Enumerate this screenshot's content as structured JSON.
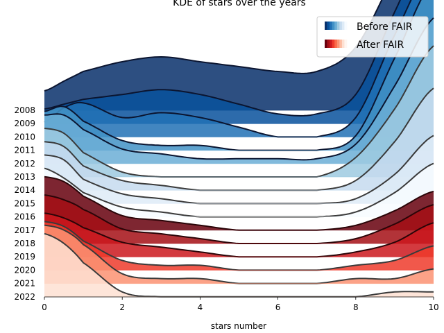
{
  "chart_data": {
    "type": "area",
    "subtype": "ridgeline-kde",
    "title": "KDE of stars over the years",
    "xlabel": "stars number",
    "ylabel": "",
    "xlim": [
      0,
      10
    ],
    "xticks": [
      "0",
      "2",
      "4",
      "6",
      "8",
      "10"
    ],
    "legend": {
      "placement": "top-right",
      "entries": [
        {
          "label": "Before FAIR",
          "colors": [
            "#08306b",
            "#08519c",
            "#2171b5",
            "#4292c6",
            "#6baed6",
            "#9ecae1",
            "#c6dbef",
            "#deebf7",
            "#f7fbff"
          ]
        },
        {
          "label": "After FAIR",
          "colors": [
            "#67000d",
            "#a50f15",
            "#cb181d",
            "#ef3b2c",
            "#fb6a4a",
            "#fc9272",
            "#fcbba1",
            "#fee0d2",
            "#fff5f0"
          ]
        }
      ]
    },
    "series": [
      {
        "name": "2008",
        "group": "before",
        "fill": "#08306b",
        "x": [
          0,
          0.5,
          1,
          2,
          3,
          4,
          5,
          6,
          7,
          8,
          9,
          10
        ],
        "density": [
          0.04,
          0.06,
          0.08,
          0.1,
          0.11,
          0.1,
          0.09,
          0.08,
          0.08,
          0.13,
          0.28,
          0.42
        ]
      },
      {
        "name": "2009",
        "group": "before",
        "fill": "#08519c",
        "x": [
          0,
          0.5,
          1,
          2,
          3,
          4,
          5,
          6,
          7,
          8,
          9,
          10
        ],
        "density": [
          0.03,
          0.04,
          0.05,
          0.06,
          0.07,
          0.06,
          0.04,
          0.02,
          0.02,
          0.06,
          0.23,
          0.39
        ]
      },
      {
        "name": "2010",
        "group": "before",
        "fill": "#2171b5",
        "x": [
          0,
          0.5,
          1,
          2,
          3,
          4,
          5,
          6,
          7,
          8,
          9,
          10
        ],
        "density": [
          0.03,
          0.06,
          0.07,
          0.04,
          0.05,
          0.04,
          0.02,
          0.0,
          0.0,
          0.04,
          0.21,
          0.36
        ]
      },
      {
        "name": "2011",
        "group": "before",
        "fill": "#4292c6",
        "x": [
          0,
          0.5,
          1,
          2,
          3,
          4,
          5,
          6,
          7,
          8,
          9,
          10
        ],
        "density": [
          0.08,
          0.09,
          0.06,
          0.02,
          0.01,
          0.01,
          0.0,
          0.0,
          0.0,
          0.03,
          0.19,
          0.35
        ]
      },
      {
        "name": "2012",
        "group": "before",
        "fill": "#6baed6",
        "x": [
          0,
          0.5,
          1,
          2,
          3,
          4,
          5,
          6,
          7,
          8,
          9,
          10
        ],
        "density": [
          0.1,
          0.1,
          0.07,
          0.03,
          0.02,
          0.01,
          0.01,
          0.01,
          0.01,
          0.04,
          0.16,
          0.3
        ]
      },
      {
        "name": "2013",
        "group": "before",
        "fill": "#9ecae1",
        "x": [
          0,
          0.5,
          1,
          2,
          3,
          4,
          5,
          6,
          7,
          8,
          9,
          10
        ],
        "density": [
          0.1,
          0.09,
          0.05,
          0.01,
          0.0,
          0.0,
          0.0,
          0.0,
          0.0,
          0.04,
          0.14,
          0.27
        ]
      },
      {
        "name": "2014",
        "group": "before",
        "fill": "#c6dbef",
        "x": [
          0,
          0.5,
          1,
          2,
          3,
          4,
          5,
          6,
          7,
          8,
          9,
          10
        ],
        "density": [
          0.1,
          0.09,
          0.05,
          0.02,
          0.01,
          0.0,
          0.0,
          0.0,
          0.0,
          0.02,
          0.1,
          0.21
        ]
      },
      {
        "name": "2015",
        "group": "before",
        "fill": "#deebf7",
        "x": [
          0,
          0.5,
          1,
          2,
          3,
          4,
          5,
          6,
          7,
          8,
          9,
          10
        ],
        "density": [
          0.1,
          0.09,
          0.05,
          0.02,
          0.01,
          0.0,
          0.0,
          0.0,
          0.0,
          0.01,
          0.06,
          0.14
        ]
      },
      {
        "name": "2016",
        "group": "before",
        "fill": "#f7fbff",
        "x": [
          0,
          0.5,
          1,
          2,
          3,
          4,
          5,
          6,
          7,
          8,
          9,
          10
        ],
        "density": [
          0.1,
          0.08,
          0.05,
          0.02,
          0.01,
          0.0,
          0.0,
          0.0,
          0.0,
          0.01,
          0.05,
          0.11
        ]
      },
      {
        "name": "2017",
        "group": "after",
        "fill": "#67000d",
        "x": [
          0,
          0.5,
          1,
          2,
          3,
          4,
          5,
          6,
          7,
          8,
          9,
          10
        ],
        "density": [
          0.11,
          0.1,
          0.07,
          0.03,
          0.02,
          0.01,
          0.0,
          0.0,
          0.0,
          0.01,
          0.04,
          0.08
        ]
      },
      {
        "name": "2018",
        "group": "after",
        "fill": "#a50f15",
        "x": [
          0,
          0.5,
          1,
          2,
          3,
          4,
          5,
          6,
          7,
          8,
          9,
          10
        ],
        "density": [
          0.1,
          0.09,
          0.07,
          0.03,
          0.02,
          0.01,
          0.0,
          0.0,
          0.0,
          0.01,
          0.04,
          0.08
        ]
      },
      {
        "name": "2019",
        "group": "after",
        "fill": "#cb181d",
        "x": [
          0,
          0.5,
          1,
          2,
          3,
          4,
          5,
          6,
          7,
          8,
          9,
          10
        ],
        "density": [
          0.09,
          0.08,
          0.06,
          0.03,
          0.02,
          0.01,
          0.0,
          0.0,
          0.0,
          0.01,
          0.03,
          0.07
        ]
      },
      {
        "name": "2020",
        "group": "after",
        "fill": "#ef3b2c",
        "x": [
          0,
          0.5,
          1,
          2,
          3,
          4,
          5,
          6,
          7,
          8,
          9,
          10
        ],
        "density": [
          0.1,
          0.09,
          0.06,
          0.02,
          0.01,
          0.01,
          0.0,
          0.0,
          0.0,
          0.01,
          0.02,
          0.05
        ]
      },
      {
        "name": "2021",
        "group": "after",
        "fill": "#fc9272",
        "x": [
          0,
          0.5,
          1,
          2,
          3,
          4,
          5,
          6,
          7,
          8,
          9,
          10
        ],
        "density": [
          0.12,
          0.11,
          0.08,
          0.02,
          0.01,
          0.01,
          0.0,
          0.0,
          0.0,
          0.01,
          0.01,
          0.03
        ]
      },
      {
        "name": "2022",
        "group": "after",
        "fill": "#fee0d2",
        "x": [
          0,
          0.5,
          1,
          2,
          3,
          4,
          5,
          6,
          7,
          8,
          9,
          10
        ],
        "density": [
          0.13,
          0.11,
          0.07,
          0.01,
          0.0,
          0.0,
          0.0,
          0.0,
          0.0,
          0.0,
          0.01,
          0.01
        ]
      }
    ],
    "grid": false
  }
}
